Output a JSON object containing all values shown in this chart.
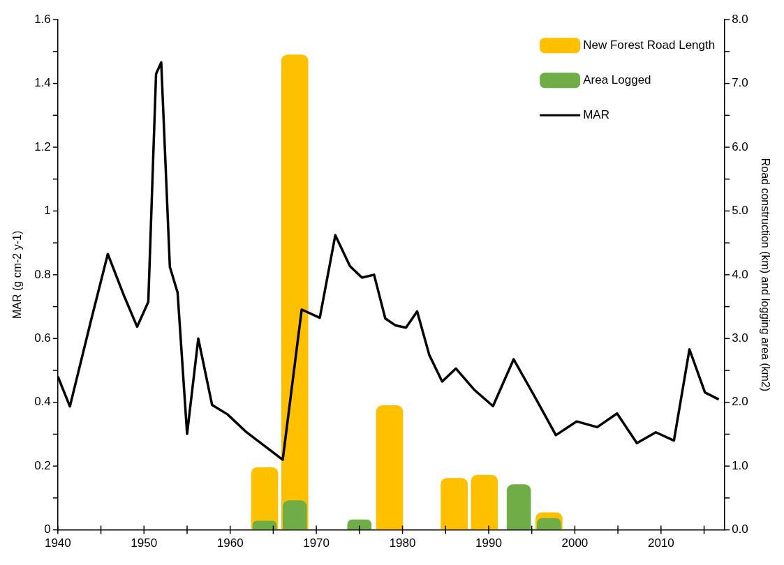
{
  "chart_data": {
    "type": "bar",
    "ylabel": "MAR (g cm-2 y-1)",
    "y2label": "Road construction (km) and logging area (km2)",
    "xlim": [
      1940,
      2017.4
    ],
    "xticks": [
      1940,
      {
        "value": 1945,
        "label": null
      },
      1950,
      {
        "value": 1955,
        "label": null
      },
      1960,
      {
        "value": 1965,
        "label": null
      },
      1970,
      {
        "value": 1975,
        "label": null
      },
      1980,
      {
        "value": 1985,
        "label": null
      },
      1990,
      {
        "value": 1995,
        "label": null
      },
      2000,
      {
        "value": 2005,
        "label": null
      },
      2010,
      {
        "value": 2015,
        "label": null
      }
    ],
    "ylim": [
      0,
      1.6
    ],
    "yticks": [
      0,
      {
        "value": 0.1,
        "label": null
      },
      0.2,
      {
        "value": 0.3,
        "label": null
      },
      0.4,
      {
        "value": 0.5,
        "label": null
      },
      0.6,
      {
        "value": 0.7,
        "label": null
      },
      0.8,
      {
        "value": 0.9,
        "label": null
      },
      1,
      {
        "value": 1.1,
        "label": null
      },
      1.2,
      {
        "value": 1.3,
        "label": null
      },
      1.4,
      {
        "value": 1.5,
        "label": null
      },
      1.6
    ],
    "y2lim": [
      0,
      8
    ],
    "y2ticks": [
      {
        "value": 0,
        "label": "0.0"
      },
      {
        "value": 0.5,
        "label": null
      },
      {
        "value": 1,
        "label": "1.0"
      },
      {
        "value": 1.5,
        "label": null
      },
      {
        "value": 2,
        "label": "2.0"
      },
      {
        "value": 2.5,
        "label": null
      },
      {
        "value": 3,
        "label": "3.0"
      },
      {
        "value": 3.5,
        "label": null
      },
      {
        "value": 4,
        "label": "4.0"
      },
      {
        "value": 4.5,
        "label": null
      },
      {
        "value": 5,
        "label": "5.0"
      },
      {
        "value": 5.5,
        "label": null
      },
      {
        "value": 6,
        "label": "6.0"
      },
      {
        "value": 6.5,
        "label": null
      },
      {
        "value": 7,
        "label": "7.0"
      },
      {
        "value": 7.5,
        "label": null
      },
      {
        "value": 8,
        "label": "8.0"
      }
    ],
    "grid": false,
    "legend": "top right",
    "series": [
      {
        "name": "New Forest Road Length",
        "axis": "y2",
        "color": "#ffc000",
        "x": [
          1964,
          1967.5,
          1978.5,
          1986,
          1989.5,
          1997
        ],
        "values": [
          0.98,
          7.45,
          1.95,
          0.81,
          0.86,
          0.27
        ]
      },
      {
        "name": "Area Logged",
        "axis": "y2",
        "color": "#70ad47",
        "x": [
          1964,
          1967.5,
          1975,
          1993.5,
          1997
        ],
        "values": [
          0.14,
          0.46,
          0.16,
          0.71,
          0.18
        ]
      },
      {
        "name": "MAR",
        "type": "line",
        "axis": "y",
        "color": "#000000",
        "x": [
          1940,
          1941.4,
          1943.8,
          1945.8,
          1947.7,
          1949.2,
          1950.5,
          1951.4,
          1952,
          1953,
          1953.9,
          1955,
          1956.3,
          1957.9,
          1959.7,
          1961.9,
          1966.1,
          1968.3,
          1970.4,
          1972.2,
          1973.9,
          1975.3,
          1976.7,
          1978,
          1979.2,
          1980.4,
          1981.7,
          1983.1,
          1984.6,
          1986.2,
          1988.3,
          1990.5,
          1992.9,
          1995.4,
          1997.8,
          2000.2,
          2002.6,
          2004.9,
          2007.2,
          2009.4,
          2011.5,
          2013.3,
          2015.1,
          2016.7
        ],
        "values": [
          0.481,
          0.387,
          0.651,
          0.865,
          0.733,
          0.637,
          0.715,
          1.43,
          1.466,
          0.825,
          0.744,
          0.301,
          0.6,
          0.392,
          0.362,
          0.306,
          0.22,
          0.691,
          0.665,
          0.924,
          0.827,
          0.791,
          0.8,
          0.663,
          0.641,
          0.634,
          0.685,
          0.549,
          0.465,
          0.506,
          0.44,
          0.388,
          0.535,
          0.415,
          0.297,
          0.34,
          0.322,
          0.365,
          0.272,
          0.306,
          0.28,
          0.566,
          0.431,
          0.409
        ]
      }
    ]
  }
}
